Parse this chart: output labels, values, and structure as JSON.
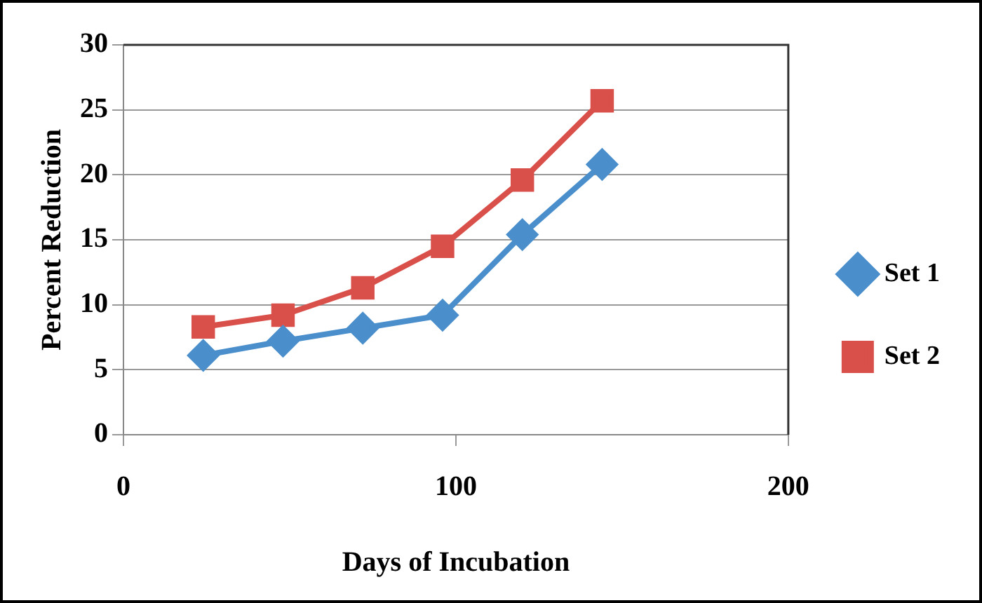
{
  "chart_data": {
    "type": "line",
    "xlabel": "Days of Incubation",
    "ylabel": "Percent Reduction",
    "xlim": [
      0,
      200
    ],
    "xticks": [
      0,
      100,
      200
    ],
    "ylim": [
      0,
      30
    ],
    "yticks": [
      0,
      5,
      10,
      15,
      20,
      25,
      30
    ],
    "grid": "y",
    "legend": "right",
    "line_style": "solid",
    "series": [
      {
        "name": "Set 1",
        "color": "#4a8fcc",
        "marker": "diamond",
        "x": [
          24,
          48,
          72,
          96,
          120,
          144
        ],
        "values": [
          6.1,
          7.2,
          8.2,
          9.2,
          15.4,
          20.8
        ]
      },
      {
        "name": "Set 2",
        "color": "#d9504b",
        "marker": "square",
        "x": [
          24,
          48,
          72,
          96,
          120,
          144
        ],
        "values": [
          8.3,
          9.2,
          11.3,
          14.5,
          19.6,
          25.7
        ]
      }
    ]
  }
}
